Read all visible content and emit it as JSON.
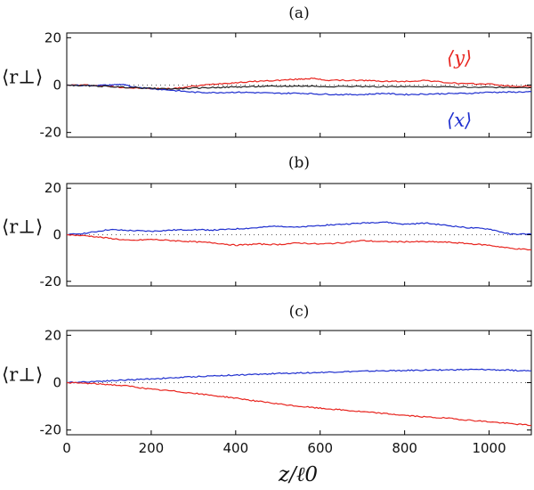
{
  "chart_data": [
    {
      "type": "line",
      "panel_label": "(a)",
      "ylabel": "⟨r⊥⟩",
      "ylim": [
        -22,
        22
      ],
      "yticks": [
        20,
        0,
        -20
      ],
      "xlim": [
        0,
        1100
      ],
      "xticks": [
        0,
        200,
        400,
        600,
        800,
        1000
      ],
      "zero_line": "dotted",
      "series": [
        {
          "name": "⟨y⟩",
          "color": "#e8251f",
          "x": [
            0,
            50,
            100,
            150,
            200,
            250,
            300,
            350,
            400,
            450,
            500,
            550,
            580,
            620,
            700,
            750,
            800,
            850,
            900,
            950,
            1000,
            1050,
            1100
          ],
          "y": [
            0,
            0,
            -0.5,
            -1.2,
            -1.5,
            -1.5,
            -0.5,
            0.5,
            1.0,
            1.6,
            2.0,
            2.5,
            2.8,
            2.0,
            2.0,
            1.6,
            1.5,
            2.0,
            1.0,
            0.5,
            0.5,
            -0.5,
            -0.6
          ]
        },
        {
          "name": "⟨x⟩",
          "color": "#1f2fcf",
          "x": [
            0,
            50,
            100,
            130,
            150,
            200,
            250,
            300,
            350,
            400,
            450,
            500,
            550,
            600,
            650,
            700,
            750,
            800,
            850,
            900,
            950,
            1000,
            1050,
            1100
          ],
          "y": [
            0,
            -0.2,
            0,
            0.3,
            -0.5,
            -1.5,
            -2.2,
            -3.0,
            -3.2,
            -3.0,
            -3.2,
            -3.5,
            -3.4,
            -3.8,
            -4.0,
            -4.0,
            -3.5,
            -4.0,
            -3.8,
            -3.6,
            -3.5,
            -3.0,
            -3.0,
            -2.8
          ]
        },
        {
          "name": "",
          "color": "#222222",
          "x": [
            0,
            50,
            100,
            150,
            200,
            250,
            300,
            350,
            400,
            450,
            500,
            550,
            600,
            700,
            800,
            900,
            1000,
            1100
          ],
          "y": [
            0,
            -0.3,
            -0.6,
            -1.0,
            -1.4,
            -1.6,
            -1.3,
            -1.0,
            -0.8,
            -0.6,
            -0.5,
            -0.4,
            -0.5,
            -0.6,
            -0.7,
            -0.8,
            -0.9,
            -1.0
          ]
        }
      ]
    },
    {
      "type": "line",
      "panel_label": "(b)",
      "ylabel": "⟨r⊥⟩",
      "ylim": [
        -22,
        22
      ],
      "yticks": [
        20,
        0,
        -20
      ],
      "xlim": [
        0,
        1100
      ],
      "xticks": [
        0,
        200,
        400,
        600,
        800,
        1000
      ],
      "zero_line": "dotted",
      "series": [
        {
          "name": "⟨x⟩",
          "color": "#1f2fcf",
          "x": [
            0,
            50,
            100,
            150,
            200,
            250,
            300,
            350,
            400,
            450,
            500,
            550,
            600,
            650,
            700,
            750,
            800,
            850,
            900,
            950,
            1000,
            1050,
            1100
          ],
          "y": [
            0,
            0.8,
            2.2,
            1.8,
            1.5,
            2.0,
            2.2,
            2.0,
            2.5,
            3.0,
            3.8,
            3.2,
            4.0,
            4.5,
            5.0,
            5.5,
            4.5,
            5.0,
            4.0,
            3.0,
            2.5,
            0.2,
            0.3
          ]
        },
        {
          "name": "⟨y⟩",
          "color": "#e8251f",
          "x": [
            0,
            50,
            100,
            150,
            200,
            250,
            300,
            350,
            400,
            450,
            500,
            550,
            600,
            650,
            700,
            750,
            800,
            850,
            900,
            950,
            1000,
            1050,
            1100
          ],
          "y": [
            0,
            -0.5,
            -1.5,
            -2.5,
            -2.0,
            -2.5,
            -3.0,
            -3.5,
            -4.5,
            -4.0,
            -4.2,
            -3.5,
            -4.0,
            -3.5,
            -2.5,
            -3.0,
            -3.0,
            -3.0,
            -3.2,
            -3.8,
            -4.5,
            -5.8,
            -6.5
          ]
        }
      ]
    },
    {
      "type": "line",
      "panel_label": "(c)",
      "ylabel": "⟨r⊥⟩",
      "xlabel": "z/ℓ0",
      "ylim": [
        -22,
        22
      ],
      "yticks": [
        20,
        0,
        -20
      ],
      "xlim": [
        0,
        1100
      ],
      "xticks": [
        0,
        200,
        400,
        600,
        800,
        1000
      ],
      "xticklabels": [
        "0",
        "200",
        "400",
        "600",
        "800",
        "1000"
      ],
      "zero_line": "dotted",
      "series": [
        {
          "name": "⟨x⟩",
          "color": "#1f2fcf",
          "x": [
            0,
            50,
            100,
            150,
            200,
            250,
            300,
            350,
            400,
            450,
            500,
            550,
            600,
            650,
            700,
            750,
            800,
            850,
            900,
            950,
            1000,
            1050,
            1100
          ],
          "y": [
            0,
            0.4,
            0.8,
            1.2,
            1.6,
            2.0,
            2.5,
            2.9,
            3.2,
            3.5,
            3.9,
            4.1,
            4.3,
            4.6,
            4.8,
            5.0,
            5.1,
            5.3,
            5.4,
            5.5,
            5.5,
            5.2,
            5.0
          ]
        },
        {
          "name": "⟨y⟩",
          "color": "#e8251f",
          "x": [
            0,
            50,
            100,
            150,
            200,
            250,
            300,
            350,
            400,
            450,
            500,
            550,
            600,
            650,
            700,
            750,
            800,
            850,
            900,
            950,
            1000,
            1050,
            1100
          ],
          "y": [
            0,
            -0.3,
            -0.8,
            -1.5,
            -2.8,
            -3.5,
            -4.5,
            -5.5,
            -6.5,
            -7.8,
            -9.0,
            -10.0,
            -10.8,
            -11.5,
            -12.3,
            -13.0,
            -13.8,
            -14.5,
            -15.0,
            -15.8,
            -16.5,
            -17.3,
            -18.0
          ]
        }
      ]
    }
  ],
  "legend": {
    "y_label": "⟨y⟩",
    "x_label": "⟨x⟩",
    "y_color": "#e8251f",
    "x_color": "#1f2fcf"
  }
}
